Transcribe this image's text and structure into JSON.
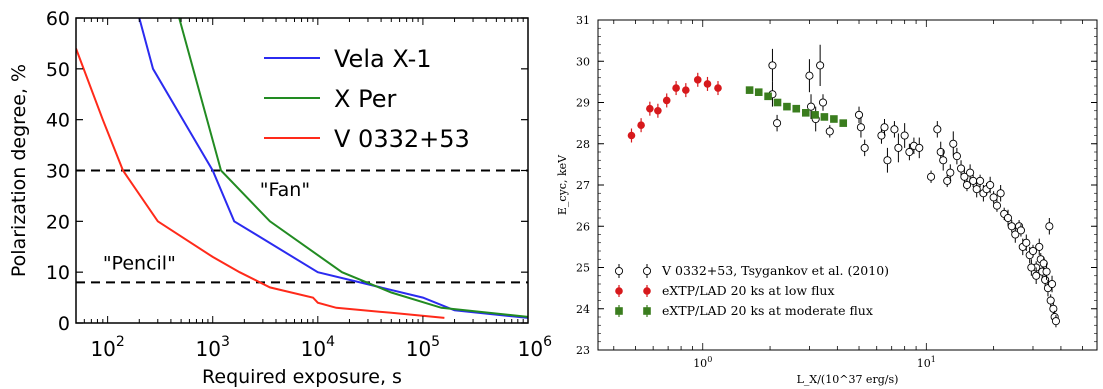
{
  "chart_data": [
    {
      "type": "line",
      "xscale": "log",
      "xlim": [
        50,
        1000000
      ],
      "ylim": [
        0,
        60
      ],
      "xlabel": "Required exposure, s",
      "ylabel": "Polarization degree, %",
      "x_ticks": [
        {
          "base": "10",
          "exp": "2",
          "value": 100
        },
        {
          "base": "10",
          "exp": "3",
          "value": 1000
        },
        {
          "base": "10",
          "exp": "4",
          "value": 10000
        },
        {
          "base": "10",
          "exp": "5",
          "value": 100000
        },
        {
          "base": "10",
          "exp": "6",
          "value": 1000000
        }
      ],
      "y_ticks": [
        "0",
        "10",
        "20",
        "30",
        "40",
        "50",
        "60"
      ],
      "hlines": [
        {
          "y": 30,
          "label": "\"Fan\"",
          "label_x": 2800,
          "label_y": 25
        },
        {
          "y": 8,
          "label": "\"Pencil\"",
          "label_x": 90,
          "label_y": 10.5
        }
      ],
      "legend_position": "top-right",
      "series": [
        {
          "name": "Vela X-1",
          "color": "#2b2bf0",
          "points": [
            [
              200,
              60
            ],
            [
              270,
              50
            ],
            [
              1000,
              30
            ],
            [
              1600,
              20
            ],
            [
              10000,
              10
            ],
            [
              100000,
              5
            ],
            [
              200000,
              2.5
            ],
            [
              1000000,
              1
            ]
          ]
        },
        {
          "name": "X Per",
          "color": "#228b22",
          "points": [
            [
              480,
              60
            ],
            [
              1200,
              30
            ],
            [
              3500,
              20
            ],
            [
              17000,
              10
            ],
            [
              50000,
              6
            ],
            [
              150000,
              3
            ],
            [
              1000000,
              1.2
            ]
          ]
        },
        {
          "name": "V 0332+53",
          "color": "#ff2a1a",
          "points": [
            [
              50,
              54
            ],
            [
              90,
              40
            ],
            [
              140,
              30
            ],
            [
              300,
              20
            ],
            [
              1000,
              13
            ],
            [
              1800,
              10
            ],
            [
              3500,
              7
            ],
            [
              9000,
              5
            ],
            [
              10000,
              4
            ],
            [
              15000,
              3
            ],
            [
              50000,
              2
            ],
            [
              160000,
              1
            ]
          ]
        }
      ]
    },
    {
      "type": "scatter",
      "xscale": "log",
      "xlim": [
        0.34,
        58
      ],
      "ylim": [
        23,
        31
      ],
      "xlabel": "L_X/(10^37 erg/s)",
      "ylabel": "E_cyc, keV",
      "x_ticks": [
        {
          "label": "10",
          "exp": "0",
          "value": 1
        },
        {
          "label": "10",
          "exp": "1",
          "value": 10
        }
      ],
      "y_ticks": [
        "23",
        "24",
        "25",
        "26",
        "27",
        "28",
        "29",
        "30",
        "31"
      ],
      "legend_position": "bottom-left",
      "series": [
        {
          "name": "V 0332+53, Tsygankov et al. (2010)",
          "marker": "open-circle",
          "color": "#000000",
          "points": [
            [
              2.05,
              29.9,
              0.4
            ],
            [
              2.05,
              29.2,
              0.3
            ],
            [
              2.15,
              28.5,
              0.2
            ],
            [
              3.0,
              29.65,
              0.4
            ],
            [
              3.05,
              28.9,
              0.3
            ],
            [
              3.2,
              28.6,
              0.3
            ],
            [
              3.35,
              29.9,
              0.5
            ],
            [
              3.45,
              29.0,
              0.2
            ],
            [
              3.7,
              28.3,
              0.15
            ],
            [
              5.0,
              28.7,
              0.2
            ],
            [
              5.1,
              28.4,
              0.25
            ],
            [
              5.3,
              27.9,
              0.2
            ],
            [
              6.3,
              28.2,
              0.2
            ],
            [
              6.5,
              28.4,
              0.2
            ],
            [
              6.7,
              27.6,
              0.3
            ],
            [
              7.2,
              28.35,
              0.2
            ],
            [
              7.5,
              27.9,
              0.35
            ],
            [
              8.0,
              28.2,
              0.3
            ],
            [
              8.4,
              27.8,
              0.2
            ],
            [
              8.8,
              27.95,
              0.2
            ],
            [
              9.3,
              27.9,
              0.25
            ],
            [
              10.5,
              27.2,
              0.15
            ],
            [
              11.2,
              28.35,
              0.2
            ],
            [
              11.6,
              27.8,
              0.25
            ],
            [
              11.9,
              27.6,
              0.25
            ],
            [
              12.4,
              27.1,
              0.15
            ],
            [
              12.8,
              27.3,
              0.2
            ],
            [
              13.2,
              28.0,
              0.3
            ],
            [
              13.7,
              27.7,
              0.2
            ],
            [
              14.3,
              27.4,
              0.2
            ],
            [
              14.8,
              27.2,
              0.2
            ],
            [
              15.2,
              27.0,
              0.15
            ],
            [
              15.7,
              27.3,
              0.2
            ],
            [
              16.2,
              27.1,
              0.15
            ],
            [
              16.8,
              26.9,
              0.2
            ],
            [
              17.4,
              27.1,
              0.15
            ],
            [
              18.0,
              26.8,
              0.2
            ],
            [
              18.6,
              26.9,
              0.15
            ],
            [
              19.3,
              27.0,
              0.2
            ],
            [
              20.0,
              26.7,
              0.15
            ],
            [
              20.7,
              26.5,
              0.15
            ],
            [
              21.5,
              26.8,
              0.2
            ],
            [
              22.3,
              26.3,
              0.15
            ],
            [
              23.2,
              26.2,
              0.2
            ],
            [
              24.1,
              26.0,
              0.15
            ],
            [
              25.0,
              25.8,
              0.2
            ],
            [
              26.0,
              26.0,
              0.15
            ],
            [
              27.0,
              25.5,
              0.2
            ],
            [
              28.0,
              25.6,
              0.2
            ],
            [
              29.0,
              25.3,
              0.2
            ],
            [
              30.0,
              25.4,
              0.15
            ],
            [
              31.0,
              25.0,
              0.15
            ],
            [
              32.0,
              25.5,
              0.2
            ],
            [
              32.5,
              25.2,
              0.15
            ],
            [
              33.0,
              24.9,
              0.2
            ],
            [
              33.5,
              25.1,
              0.15
            ],
            [
              34.0,
              24.7,
              0.15
            ],
            [
              34.5,
              24.9,
              0.2
            ],
            [
              35.0,
              24.5,
              0.2
            ],
            [
              35.5,
              26.0,
              0.2
            ],
            [
              36.0,
              24.2,
              0.15
            ],
            [
              36.5,
              24.6,
              0.2
            ],
            [
              37.0,
              24.0,
              0.15
            ],
            [
              37.5,
              23.8,
              0.15
            ],
            [
              38.0,
              23.7,
              0.15
            ],
            [
              31.0,
              24.8,
              0.2
            ],
            [
              29.5,
              25.0,
              0.2
            ],
            [
              26.5,
              25.9,
              0.15
            ]
          ]
        },
        {
          "name": "eXTP/LAD 20 ks at low flux",
          "marker": "filled-circle",
          "color": "#d7191c",
          "points": [
            [
              0.48,
              28.2
            ],
            [
              0.53,
              28.45
            ],
            [
              0.58,
              28.85
            ],
            [
              0.63,
              28.8
            ],
            [
              0.69,
              29.05
            ],
            [
              0.76,
              29.35
            ],
            [
              0.84,
              29.3
            ],
            [
              0.95,
              29.55
            ],
            [
              1.05,
              29.45
            ],
            [
              1.17,
              29.35
            ]
          ]
        },
        {
          "name": "eXTP/LAD 20 ks at moderate flux",
          "marker": "filled-square",
          "color": "#3a7d1e",
          "points": [
            [
              1.62,
              29.3
            ],
            [
              1.78,
              29.25
            ],
            [
              1.96,
              29.15
            ],
            [
              2.16,
              29.0
            ],
            [
              2.38,
              28.9
            ],
            [
              2.62,
              28.85
            ],
            [
              2.89,
              28.75
            ],
            [
              3.18,
              28.7
            ],
            [
              3.5,
              28.65
            ],
            [
              3.86,
              28.6
            ],
            [
              4.25,
              28.5
            ]
          ]
        }
      ]
    }
  ]
}
